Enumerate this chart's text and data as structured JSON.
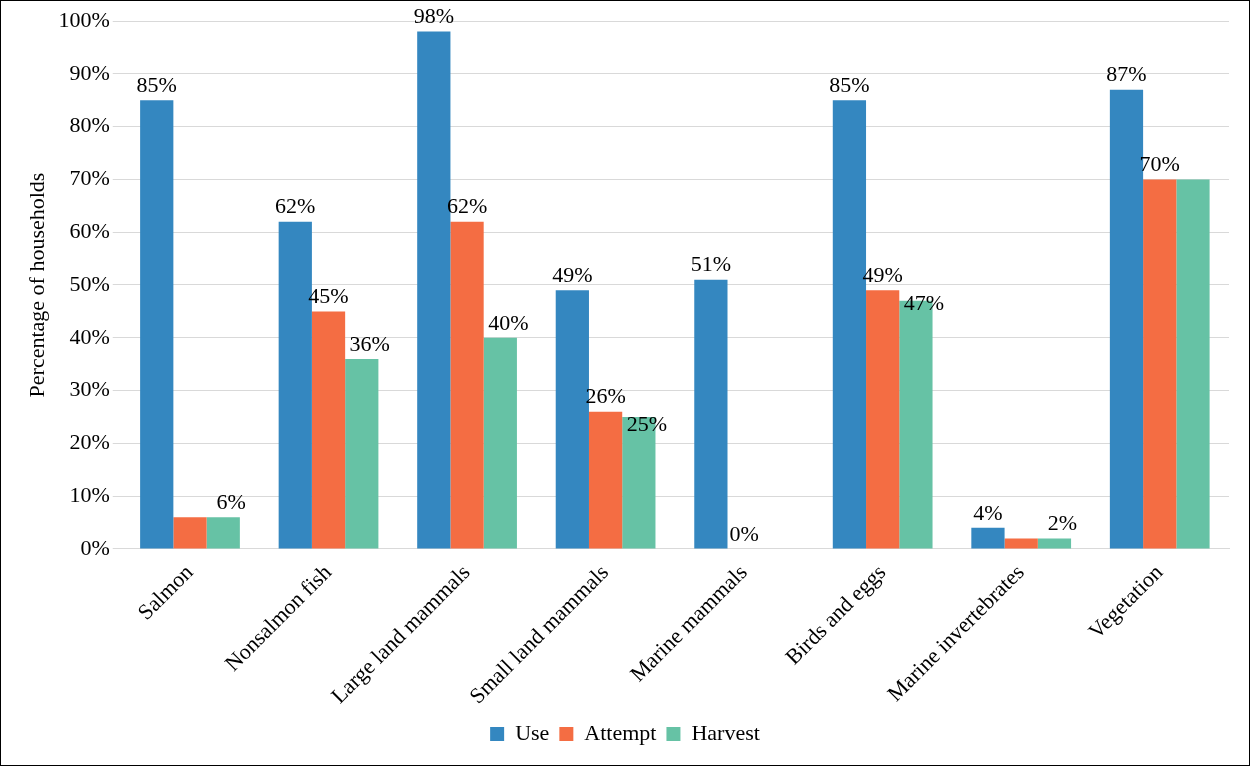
{
  "chart_data": {
    "type": "bar",
    "ylabel": "Percentage of households",
    "categories": [
      "Salmon",
      "Nonsalmon fish",
      "Large land mammals",
      "Small land mammals",
      "Marine mammals",
      "Birds and eggs",
      "Marine invertebrates",
      "Vegetation"
    ],
    "series": [
      {
        "name": "Use",
        "color": "#3487c0",
        "values": [
          85,
          62,
          98,
          49,
          51,
          85,
          4,
          87
        ],
        "value_labels": [
          "85%",
          "62%",
          "98%",
          "49%",
          "51%",
          "85%",
          "4%",
          "87%"
        ]
      },
      {
        "name": "Attempt",
        "color": "#f46d43",
        "values": [
          6,
          45,
          62,
          26,
          0,
          49,
          2,
          70
        ],
        "value_labels": [
          null,
          "45%",
          "62%",
          "26%",
          "0%",
          "49%",
          null,
          "70%"
        ]
      },
      {
        "name": "Harvest",
        "color": "#66c2a5",
        "values": [
          6,
          36,
          40,
          25,
          0,
          47,
          2,
          70
        ],
        "value_labels": [
          "6%",
          "36%",
          "40%",
          "25%",
          null,
          "47%",
          "2%",
          null
        ]
      }
    ],
    "ylim": [
      0,
      100
    ],
    "yticks": [
      {
        "value": 0,
        "label": "0%"
      },
      {
        "value": 10,
        "label": "10%"
      },
      {
        "value": 20,
        "label": "20%"
      },
      {
        "value": 30,
        "label": "30%"
      },
      {
        "value": 40,
        "label": "40%"
      },
      {
        "value": 50,
        "label": "50%"
      },
      {
        "value": 60,
        "label": "60%"
      },
      {
        "value": 70,
        "label": "70%"
      },
      {
        "value": 80,
        "label": "80%"
      },
      {
        "value": 90,
        "label": "90%"
      },
      {
        "value": 100,
        "label": "100%"
      }
    ],
    "grid": "y",
    "legend": "bottom"
  }
}
